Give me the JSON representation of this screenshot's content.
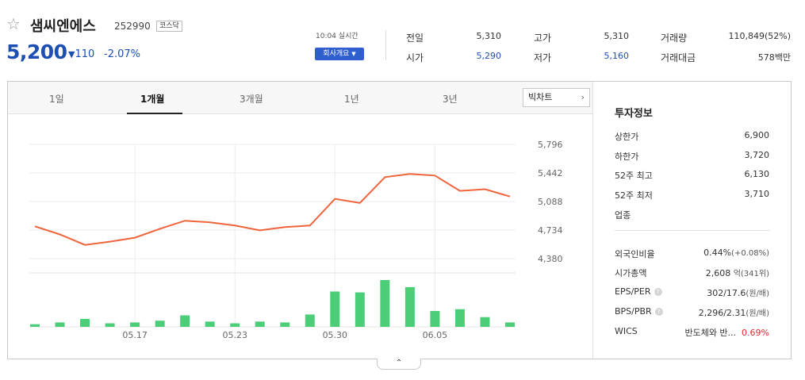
{
  "header": {
    "star_icon": "star-outline-icon",
    "name": "샘씨엔에스",
    "code": "252990",
    "market": "코스닥",
    "price": "5,200",
    "direction_icon": "triangle-down-icon",
    "change": "110",
    "change_rate": "-2.07%",
    "realtime": "10:04 실시간",
    "company_button": "회사개요"
  },
  "quote": {
    "prev_close_label": "전일",
    "prev_close": "5,310",
    "open_label": "시가",
    "open": "5,290",
    "high_label": "고가",
    "high": "5,310",
    "low_label": "저가",
    "low": "5,160",
    "volume_label": "거래량",
    "volume": "110,849(52%)",
    "amount_label": "거래대금",
    "amount": "578백만"
  },
  "tabs": [
    {
      "label": "1일",
      "active": false
    },
    {
      "label": "1개월",
      "active": true
    },
    {
      "label": "3개월",
      "active": false
    },
    {
      "label": "1년",
      "active": false
    },
    {
      "label": "3년",
      "active": false
    }
  ],
  "bigchart_label": "빅차트",
  "chart_data": {
    "type": "line",
    "y_ticks": [
      "5,796",
      "5,442",
      "5,088",
      "4,734",
      "4,380"
    ],
    "y_tick_values": [
      5796,
      5442,
      5088,
      4734,
      4380
    ],
    "ylim": [
      4380,
      5796
    ],
    "x_labels": [
      "05.17",
      "05.23",
      "05.30",
      "06.05"
    ],
    "x_label_index": [
      4,
      8,
      12,
      16
    ],
    "series": [
      {
        "values": [
          4780,
          4680,
          4550,
          4590,
          4640,
          4750,
          4850,
          4830,
          4790,
          4730,
          4770,
          4790,
          5120,
          5070,
          5390,
          5430,
          5410,
          5220,
          5240,
          5150
        ]
      }
    ],
    "volume": [
      3,
      5,
      9,
      4,
      5,
      7,
      13,
      6,
      4,
      6,
      5,
      14,
      40,
      39,
      53,
      45,
      18,
      20,
      11,
      5
    ],
    "line_color": "#f0643c",
    "volume_color": "#4ccd78",
    "grid": true
  },
  "invest": {
    "title": "투자정보",
    "rows": [
      {
        "label": "상한가",
        "value": "6,900",
        "tone": "red"
      },
      {
        "label": "하한가",
        "value": "3,720",
        "tone": "blue"
      },
      {
        "label": "52주 최고",
        "value": "6,130",
        "tone": ""
      },
      {
        "label": "52주 최저",
        "value": "3,710",
        "tone": ""
      },
      {
        "label": "업종",
        "value": "",
        "tone": ""
      }
    ],
    "foreign_label": "외국인비율",
    "foreign_value": "0.44%",
    "foreign_change": "(+0.08%)",
    "mcap_label": "시가총액",
    "mcap_value": "2,608",
    "mcap_unit": "억(341위)",
    "eps_label": "EPS/PER",
    "eps_value": "302/17.6",
    "eps_unit": "(원/배)",
    "bps_label": "BPS/PBR",
    "bps_value": "2,296/2.31",
    "bps_unit": "(원/배)",
    "wics_label": "WICS",
    "wics_value": "반도체와 반...",
    "wics_rate": "0.69%",
    "help_glyph": "?"
  },
  "collapse_icon": "chevron-up-icon"
}
